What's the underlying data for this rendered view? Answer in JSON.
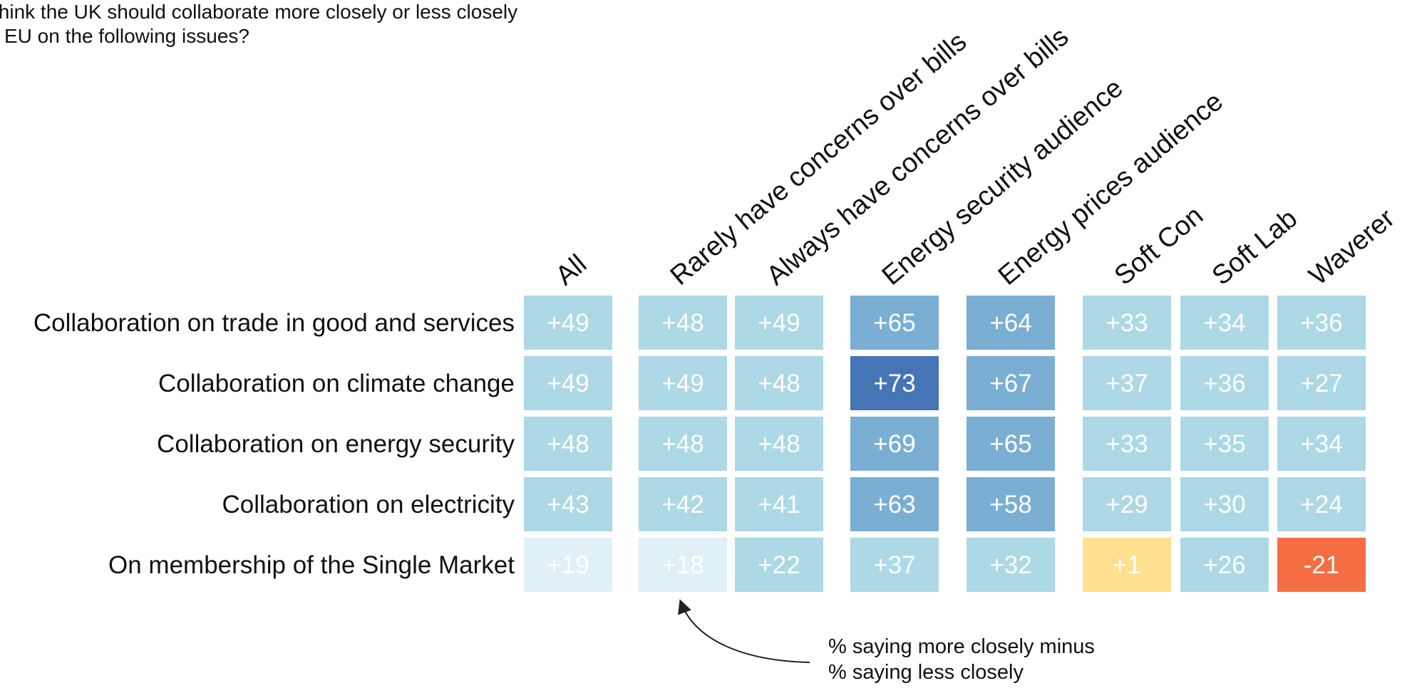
{
  "question": {
    "line1": "think the UK should collaborate more closely or less closely",
    "line2": "EU on the following issues?"
  },
  "note": {
    "line1": "% saying more closely minus",
    "line2": "% saying less closely"
  },
  "colors": {
    "very_light_blue": "#dff0f7",
    "light_blue": "#add8e6",
    "mid_blue": "#7aaed3",
    "dark_blue": "#4575b4",
    "yellow": "#fee090",
    "orange": "#f46d43",
    "text": "#111111"
  },
  "chart_data": {
    "type": "heatmap",
    "columns": [
      "All",
      "Rarely have concerns over bills",
      "Always have concerns over bills",
      "Energy security audience",
      "Energy prices audience",
      "Soft Con",
      "Soft Lab",
      "Waverer"
    ],
    "rows": [
      "Collaboration on trade in good and services",
      "Collaboration on climate change",
      "Collaboration on energy security",
      "Collaboration on electricity",
      "On membership of the Single Market"
    ],
    "values": [
      [
        49,
        48,
        49,
        65,
        64,
        33,
        34,
        36
      ],
      [
        49,
        49,
        48,
        73,
        67,
        37,
        36,
        27
      ],
      [
        48,
        48,
        48,
        69,
        65,
        33,
        35,
        34
      ],
      [
        43,
        42,
        41,
        63,
        58,
        29,
        30,
        24
      ],
      [
        19,
        18,
        22,
        37,
        32,
        1,
        26,
        -21
      ]
    ],
    "labels": [
      [
        "+49",
        "+48",
        "+49",
        "+65",
        "+64",
        "+33",
        "+34",
        "+36"
      ],
      [
        "+49",
        "+49",
        "+48",
        "+73",
        "+67",
        "+37",
        "+36",
        "+27"
      ],
      [
        "+48",
        "+48",
        "+48",
        "+69",
        "+65",
        "+33",
        "+35",
        "+34"
      ],
      [
        "+43",
        "+42",
        "+41",
        "+63",
        "+58",
        "+29",
        "+30",
        "+24"
      ],
      [
        "+19",
        "+18",
        "+22",
        "+37",
        "+32",
        "+1",
        "+26",
        "-21"
      ]
    ]
  }
}
